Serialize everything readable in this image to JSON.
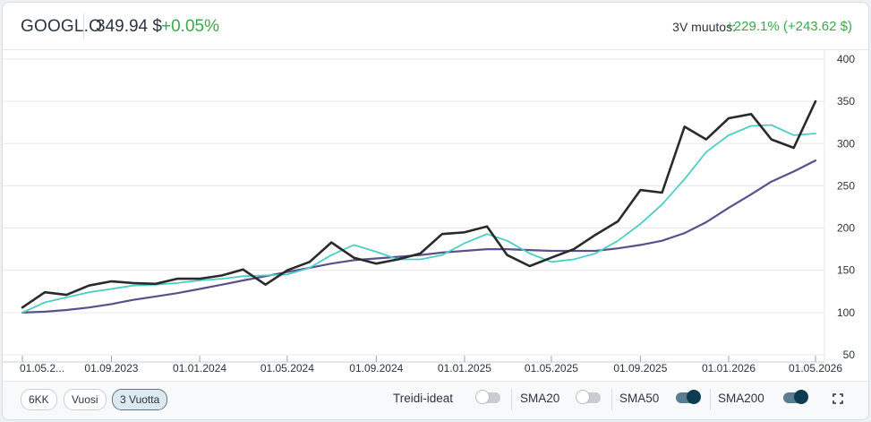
{
  "header": {
    "ticker": "GOOGL.O",
    "price": "349.94 $",
    "change": "+0.05%",
    "range_label": "3V muutos:",
    "range_value": "+229.1% (+243.62 $)"
  },
  "colors": {
    "price": "#2a2a2a",
    "sma50": "#4ccfc3",
    "sma200": "#5b4f8c",
    "positive": "#3aa84b",
    "toggle_on": "#0f3b52"
  },
  "chart_data": {
    "type": "line",
    "title": "",
    "xlabel": "",
    "ylabel": "",
    "ylim": [
      50,
      400
    ],
    "yticks": [
      400,
      350,
      300,
      250,
      200,
      150,
      100,
      50
    ],
    "xticks": [
      "01.05.2...",
      "01.09.2023",
      "01.01.2024",
      "01.05.2024",
      "01.09.2024",
      "01.01.2025",
      "01.05.2025",
      "01.09.2025",
      "01.01.2026",
      "01.05.2026"
    ],
    "x_range": [
      "2023-05-01",
      "2026-05-01"
    ],
    "grid": true,
    "y_axis_side": "right",
    "series": [
      {
        "name": "",
        "x": [
          "2023-05-01",
          "2023-06-01",
          "2023-07-01",
          "2023-08-01",
          "2023-09-01",
          "2023-10-01",
          "2023-11-01",
          "2023-12-01",
          "2024-01-01",
          "2024-02-01",
          "2024-03-01",
          "2024-04-01",
          "2024-05-01",
          "2024-06-01",
          "2024-07-01",
          "2024-08-01",
          "2024-09-01",
          "2024-10-01",
          "2024-11-01",
          "2024-12-01",
          "2025-01-01",
          "2025-02-01",
          "2025-03-01",
          "2025-04-01",
          "2025-05-01",
          "2025-06-01",
          "2025-07-01",
          "2025-08-01",
          "2025-09-01",
          "2025-10-01",
          "2025-11-01",
          "2025-12-01",
          "2026-01-01",
          "2026-02-01",
          "2026-03-01",
          "2026-04-01",
          "2026-05-01"
        ],
        "values": [
          106,
          124,
          121,
          132,
          137,
          135,
          134,
          140,
          140,
          144,
          151,
          133,
          150,
          160,
          183,
          165,
          158,
          163,
          170,
          193,
          195,
          202,
          168,
          155,
          165,
          175,
          192,
          208,
          245,
          242,
          320,
          305,
          330,
          335,
          305,
          295,
          350
        ]
      },
      {
        "name": "SMA50",
        "x": [
          "2023-05-01",
          "2023-06-01",
          "2023-07-01",
          "2023-08-01",
          "2023-09-01",
          "2023-10-01",
          "2023-11-01",
          "2023-12-01",
          "2024-01-01",
          "2024-02-01",
          "2024-03-01",
          "2024-04-01",
          "2024-05-01",
          "2024-06-01",
          "2024-07-01",
          "2024-08-01",
          "2024-09-01",
          "2024-10-01",
          "2024-11-01",
          "2024-12-01",
          "2025-01-01",
          "2025-02-01",
          "2025-03-01",
          "2025-04-01",
          "2025-05-01",
          "2025-06-01",
          "2025-07-01",
          "2025-08-01",
          "2025-09-01",
          "2025-10-01",
          "2025-11-01",
          "2025-12-01",
          "2026-01-01",
          "2026-02-01",
          "2026-03-01",
          "2026-04-01",
          "2026-05-01"
        ],
        "values": [
          100,
          112,
          118,
          124,
          128,
          132,
          133,
          135,
          138,
          140,
          143,
          144,
          145,
          153,
          168,
          180,
          172,
          163,
          163,
          168,
          182,
          193,
          185,
          170,
          160,
          163,
          170,
          185,
          205,
          228,
          258,
          290,
          310,
          321,
          322,
          310,
          312
        ]
      },
      {
        "name": "SMA200",
        "x": [
          "2023-05-01",
          "2023-06-01",
          "2023-07-01",
          "2023-08-01",
          "2023-09-01",
          "2023-10-01",
          "2023-11-01",
          "2023-12-01",
          "2024-01-01",
          "2024-02-01",
          "2024-03-01",
          "2024-04-01",
          "2024-05-01",
          "2024-06-01",
          "2024-07-01",
          "2024-08-01",
          "2024-09-01",
          "2024-10-01",
          "2024-11-01",
          "2024-12-01",
          "2025-01-01",
          "2025-02-01",
          "2025-03-01",
          "2025-04-01",
          "2025-05-01",
          "2025-06-01",
          "2025-07-01",
          "2025-08-01",
          "2025-09-01",
          "2025-10-01",
          "2025-11-01",
          "2025-12-01",
          "2026-01-01",
          "2026-02-01",
          "2026-03-01",
          "2026-04-01",
          "2026-05-01"
        ],
        "values": [
          100,
          101,
          103,
          106,
          110,
          115,
          119,
          123,
          128,
          133,
          138,
          143,
          148,
          153,
          158,
          162,
          164,
          166,
          168,
          171,
          173,
          175,
          175,
          174,
          173,
          173,
          173,
          176,
          180,
          185,
          194,
          207,
          224,
          240,
          255,
          267,
          280
        ]
      }
    ]
  },
  "footer": {
    "periods": [
      "6KK",
      "Vuosi",
      "3 Vuotta"
    ],
    "active_period": "3 Vuotta",
    "toggles": [
      {
        "label": "Treidi-ideat",
        "on": false
      },
      {
        "label": "SMA20",
        "on": false
      },
      {
        "label": "SMA50",
        "on": true
      },
      {
        "label": "SMA200",
        "on": true
      }
    ]
  }
}
